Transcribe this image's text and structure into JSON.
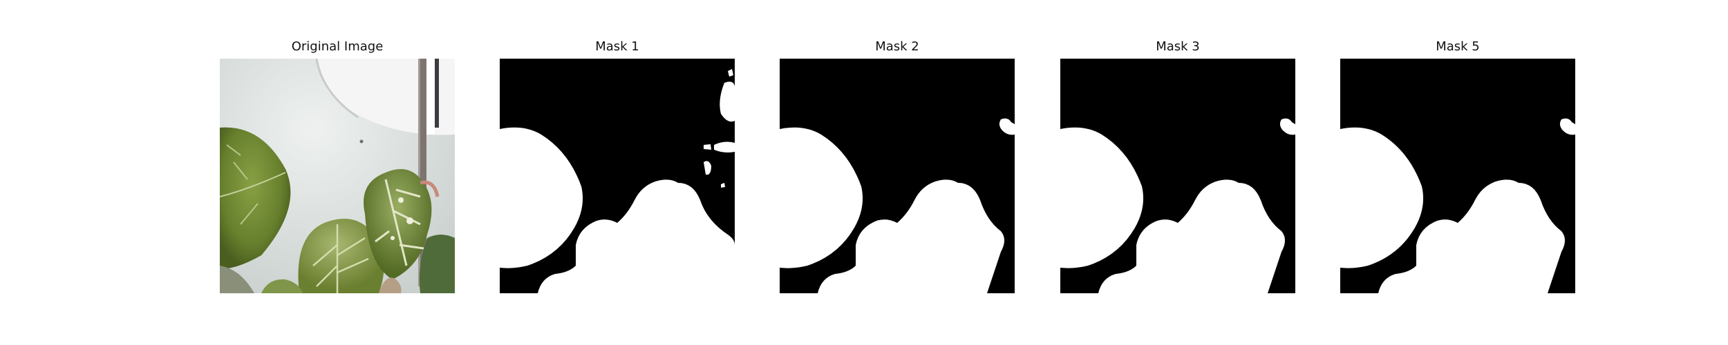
{
  "figure": {
    "panels": [
      {
        "title": "Original Image",
        "kind": "photo"
      },
      {
        "title": "Mask 1",
        "kind": "mask"
      },
      {
        "title": "Mask 2",
        "kind": "mask"
      },
      {
        "title": "Mask 3",
        "kind": "mask"
      },
      {
        "title": "Mask 5",
        "kind": "mask"
      }
    ]
  }
}
